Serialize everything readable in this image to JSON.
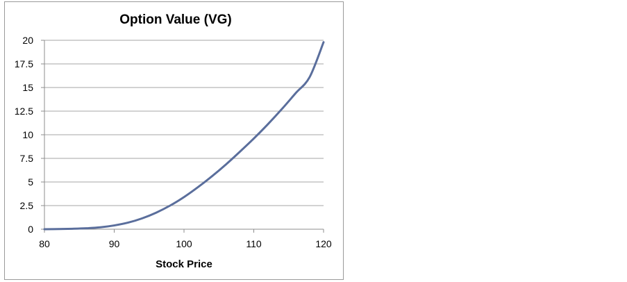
{
  "chart_data": {
    "type": "line",
    "title": "Option Value (VG)",
    "xlabel": "Stock Price",
    "ylabel": "",
    "xlim": [
      80,
      120
    ],
    "ylim": [
      0,
      20
    ],
    "x_ticks": [
      "80",
      "90",
      "100",
      "110",
      "120"
    ],
    "y_ticks": [
      "0",
      "2.5",
      "5",
      "7.5",
      "10",
      "12.5",
      "15",
      "17.5",
      "20"
    ],
    "grid": "horizontal",
    "legend": "none",
    "line_color": "#5a6e9c",
    "series": [
      {
        "x": [
          80,
          82,
          84,
          86,
          88,
          90,
          92,
          94,
          96,
          98,
          100,
          102,
          104,
          106,
          108,
          110,
          112,
          114,
          116,
          118,
          120
        ],
        "values": [
          0.0,
          0.02,
          0.05,
          0.1,
          0.2,
          0.4,
          0.7,
          1.15,
          1.75,
          2.5,
          3.4,
          4.45,
          5.6,
          6.85,
          8.2,
          9.6,
          11.1,
          12.7,
          14.4,
          16.1,
          19.8
        ]
      }
    ]
  }
}
